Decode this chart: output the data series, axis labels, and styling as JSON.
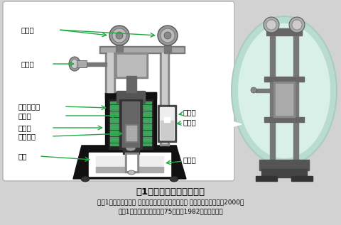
{
  "fig_width": 4.8,
  "fig_height": 3.17,
  "dpi": 100,
  "bg_color": "#d2d2d2",
  "panel_bg": "#ffffff",
  "panel_border": "#bbbbbb",
  "oval_bg_outer": "#b8ddd0",
  "oval_bg_inner": "#d8f0e8",
  "arrow_color": "#22aa44",
  "label_color": "#000000",
  "title_text": "図1　差圧発信器の原理図",
  "caption1": "（図1左：「大学課程 計測工学（第３版）」、土屋 喜一編、オーム社、2000年",
  "caption2": "　図1右：山武ハネウエル75年史（1982）より転載）",
  "label_teishi": "停止弁",
  "label_kinto": "均等弁",
  "label_yudo": "誘導コイル",
  "label_tetsu": "鉄　心",
  "label_koatsu": "高圧密",
  "label_float": "フロート",
  "label_shibori": "絞り",
  "label_teiatsu": "低圧密",
  "label_suigin": "水　銀",
  "label_renketsu": "連結管"
}
